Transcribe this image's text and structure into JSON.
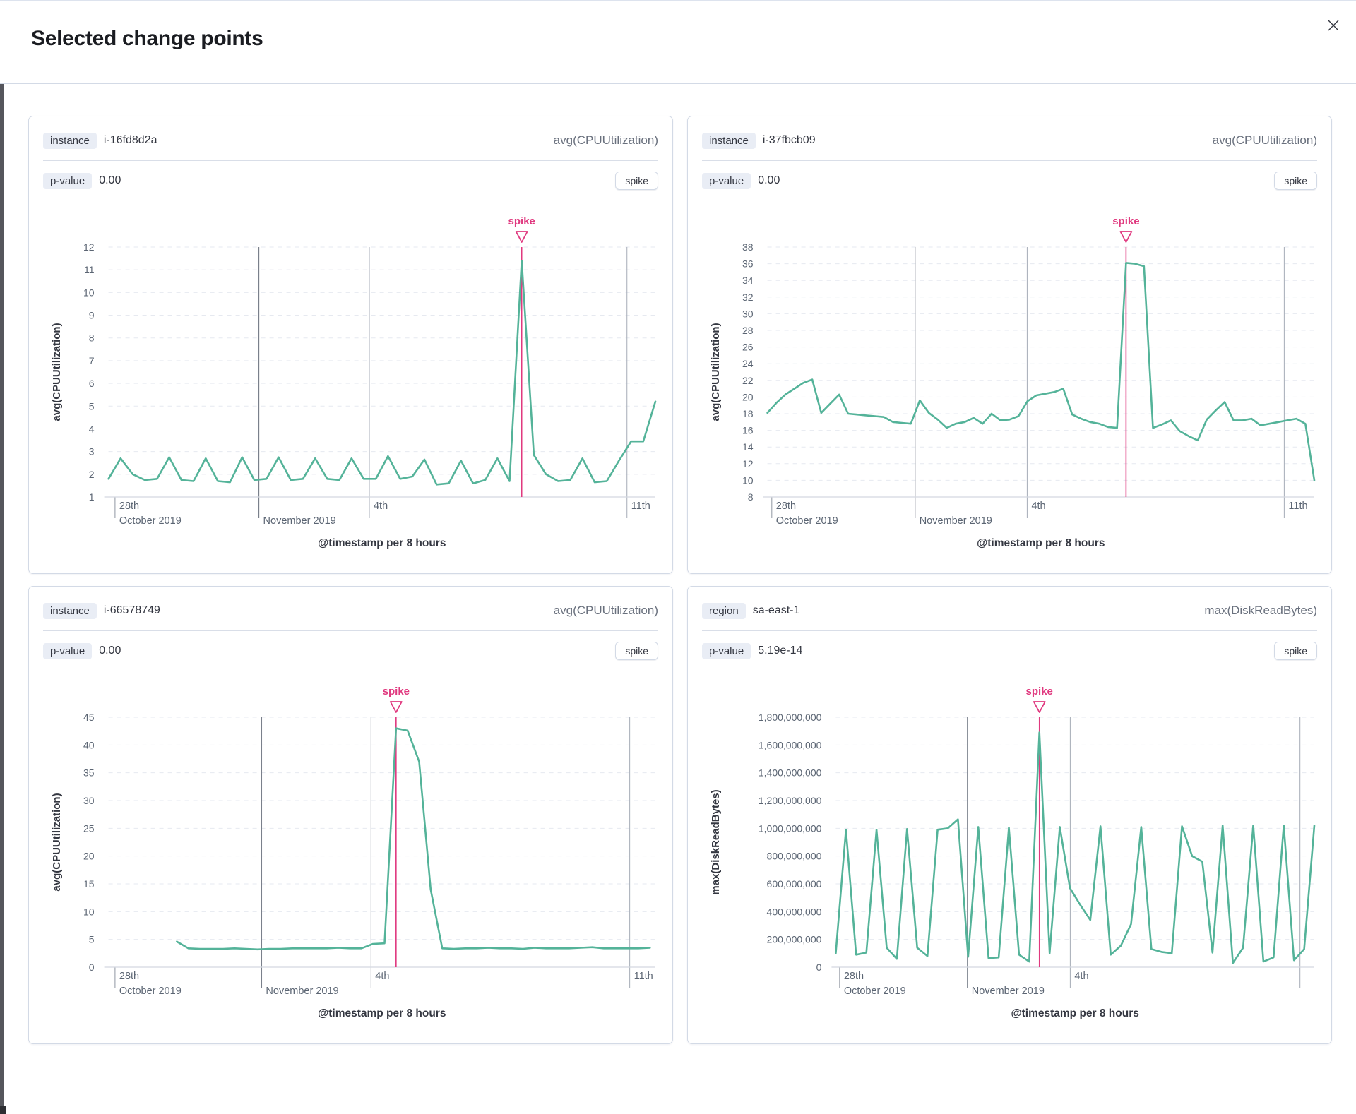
{
  "modal": {
    "title": "Selected change points"
  },
  "theme": {
    "line_color": "#54B399",
    "annotation_color": "#e0397f",
    "grid_dash_color": "#e6e9f0",
    "axis_line_color": "#d4d8e0",
    "strong_gridline_color": "#7a808b",
    "light_gridline_color": "#adb3bd",
    "tick_gridline_color": "#9aa0aa",
    "tick_label_color": "#5b6573",
    "axis_title_color": "#343741"
  },
  "panels": [
    {
      "key_label": "instance",
      "key_value": "i-16fd8d2a",
      "metric": "avg(CPUUtilization)",
      "p_label": "p-value",
      "p_value": "0.00",
      "change_type": "spike",
      "chart_data": {
        "type": "line",
        "xlabel": "@timestamp per 8 hours",
        "ylabel": "avg(CPUUtilization)",
        "ylim": [
          1,
          12
        ],
        "x_start": 0,
        "x_end": 1,
        "yticks": [
          {
            "v": 12,
            "t": "12"
          },
          {
            "v": 11,
            "t": "11"
          },
          {
            "v": 10,
            "t": "10"
          },
          {
            "v": 9,
            "t": "9"
          },
          {
            "v": 8,
            "t": "8"
          },
          {
            "v": 7,
            "t": "7"
          },
          {
            "v": 6,
            "t": "6"
          },
          {
            "v": 5,
            "t": "5"
          },
          {
            "v": 4,
            "t": "4"
          },
          {
            "v": 3,
            "t": "3"
          },
          {
            "v": 2,
            "t": "2"
          },
          {
            "v": 1,
            "t": "1"
          }
        ],
        "xticks": [
          {
            "frac": 0.012,
            "line1": "28th",
            "line2": "October 2019",
            "style": "tick"
          },
          {
            "frac": 0.275,
            "line1": "",
            "line2": "November 2019",
            "style": "strong"
          },
          {
            "frac": 0.477,
            "line1": "4th",
            "line2": "",
            "style": "light"
          },
          {
            "frac": 0.948,
            "line1": "11th",
            "line2": "",
            "style": "light"
          }
        ],
        "values": [
          1.8,
          2.7,
          2.0,
          1.75,
          1.8,
          2.75,
          1.75,
          1.7,
          2.7,
          1.7,
          1.65,
          2.75,
          1.75,
          1.8,
          2.75,
          1.75,
          1.8,
          2.7,
          1.8,
          1.75,
          2.7,
          1.8,
          1.8,
          2.8,
          1.8,
          1.9,
          2.65,
          1.55,
          1.6,
          2.6,
          1.6,
          1.75,
          2.7,
          1.7,
          11.4,
          2.85,
          2.0,
          1.7,
          1.75,
          2.7,
          1.65,
          1.7,
          2.6,
          3.45,
          3.45,
          5.2
        ],
        "annotation": {
          "label": "spike"
        }
      }
    },
    {
      "key_label": "instance",
      "key_value": "i-37fbcb09",
      "metric": "avg(CPUUtilization)",
      "p_label": "p-value",
      "p_value": "0.00",
      "change_type": "spike",
      "chart_data": {
        "type": "line",
        "xlabel": "@timestamp per 8 hours",
        "ylabel": "avg(CPUUtilization)",
        "ylim": [
          8,
          38
        ],
        "x_start": 0,
        "x_end": 1,
        "yticks": [
          {
            "v": 38,
            "t": "38"
          },
          {
            "v": 36,
            "t": "36"
          },
          {
            "v": 34,
            "t": "34"
          },
          {
            "v": 32,
            "t": "32"
          },
          {
            "v": 30,
            "t": "30"
          },
          {
            "v": 28,
            "t": "28"
          },
          {
            "v": 26,
            "t": "26"
          },
          {
            "v": 24,
            "t": "24"
          },
          {
            "v": 22,
            "t": "22"
          },
          {
            "v": 20,
            "t": "20"
          },
          {
            "v": 18,
            "t": "18"
          },
          {
            "v": 16,
            "t": "16"
          },
          {
            "v": 14,
            "t": "14"
          },
          {
            "v": 12,
            "t": "12"
          },
          {
            "v": 10,
            "t": "10"
          },
          {
            "v": 8,
            "t": "8"
          }
        ],
        "xticks": [
          {
            "frac": 0.008,
            "line1": "28th",
            "line2": "October 2019",
            "style": "tick"
          },
          {
            "frac": 0.27,
            "line1": "",
            "line2": "November 2019",
            "style": "strong"
          },
          {
            "frac": 0.475,
            "line1": "4th",
            "line2": "",
            "style": "light"
          },
          {
            "frac": 0.945,
            "line1": "11th",
            "line2": "",
            "style": "light"
          }
        ],
        "values": [
          18.1,
          19.3,
          20.3,
          21.0,
          21.7,
          22.1,
          18.1,
          19.2,
          20.3,
          18.0,
          17.9,
          17.8,
          17.7,
          17.6,
          17.0,
          16.9,
          16.8,
          19.6,
          18.1,
          17.3,
          16.3,
          16.8,
          17.0,
          17.5,
          16.8,
          18.0,
          17.2,
          17.3,
          17.7,
          19.5,
          20.2,
          20.4,
          20.6,
          21.0,
          17.9,
          17.4,
          17.0,
          16.8,
          16.4,
          16.3,
          36.1,
          36.0,
          35.7,
          16.3,
          16.7,
          17.2,
          15.9,
          15.3,
          14.8,
          17.3,
          18.4,
          19.4,
          17.2,
          17.2,
          17.4,
          16.6,
          16.8,
          17.0,
          17.2,
          17.4,
          16.8,
          10.0
        ],
        "annotation": {
          "label": "spike"
        }
      }
    },
    {
      "key_label": "instance",
      "key_value": "i-66578749",
      "metric": "avg(CPUUtilization)",
      "p_label": "p-value",
      "p_value": "0.00",
      "change_type": "spike",
      "chart_data": {
        "type": "line",
        "xlabel": "@timestamp per 8 hours",
        "ylabel": "avg(CPUUtilization)",
        "ylim": [
          0,
          45
        ],
        "x_start": 0.125,
        "x_end": 0.99,
        "yticks": [
          {
            "v": 45,
            "t": "45"
          },
          {
            "v": 40,
            "t": "40"
          },
          {
            "v": 35,
            "t": "35"
          },
          {
            "v": 30,
            "t": "30"
          },
          {
            "v": 25,
            "t": "25"
          },
          {
            "v": 20,
            "t": "20"
          },
          {
            "v": 15,
            "t": "15"
          },
          {
            "v": 10,
            "t": "10"
          },
          {
            "v": 5,
            "t": "5"
          },
          {
            "v": 0,
            "t": "0"
          }
        ],
        "xticks": [
          {
            "frac": 0.012,
            "line1": "28th",
            "line2": "October 2019",
            "style": "tick"
          },
          {
            "frac": 0.28,
            "line1": "",
            "line2": "November 2019",
            "style": "strong"
          },
          {
            "frac": 0.48,
            "line1": "4th",
            "line2": "",
            "style": "light"
          },
          {
            "frac": 0.953,
            "line1": "11th",
            "line2": "",
            "style": "light"
          }
        ],
        "values": [
          4.6,
          3.4,
          3.3,
          3.3,
          3.3,
          3.4,
          3.3,
          3.2,
          3.3,
          3.3,
          3.4,
          3.4,
          3.4,
          3.4,
          3.5,
          3.4,
          3.4,
          4.2,
          4.3,
          43.0,
          42.6,
          37.0,
          14.0,
          3.4,
          3.3,
          3.4,
          3.4,
          3.5,
          3.4,
          3.4,
          3.3,
          3.5,
          3.4,
          3.4,
          3.4,
          3.5,
          3.6,
          3.4,
          3.4,
          3.4,
          3.4,
          3.5
        ],
        "annotation": {
          "label": "spike"
        }
      }
    },
    {
      "key_label": "region",
      "key_value": "sa-east-1",
      "metric": "max(DiskReadBytes)",
      "p_label": "p-value",
      "p_value": "5.19e-14",
      "change_type": "spike",
      "chart_data": {
        "type": "line",
        "xlabel": "@timestamp per 8 hours",
        "ylabel": "max(DiskReadBytes)",
        "ylim": [
          0,
          1800000000
        ],
        "x_start": 0,
        "x_end": 1,
        "yticks": [
          {
            "v": 1800000000,
            "t": "1,800,000,000"
          },
          {
            "v": 1600000000,
            "t": "1,600,000,000"
          },
          {
            "v": 1400000000,
            "t": "1,400,000,000"
          },
          {
            "v": 1200000000,
            "t": "1,200,000,000"
          },
          {
            "v": 1000000000,
            "t": "1,000,000,000"
          },
          {
            "v": 800000000,
            "t": "800,000,000"
          },
          {
            "v": 600000000,
            "t": "600,000,000"
          },
          {
            "v": 400000000,
            "t": "400,000,000"
          },
          {
            "v": 200000000,
            "t": "200,000,000"
          },
          {
            "v": 0,
            "t": "0"
          }
        ],
        "xticks": [
          {
            "frac": 0.008,
            "line1": "28th",
            "line2": "October 2019",
            "style": "tick"
          },
          {
            "frac": 0.275,
            "line1": "",
            "line2": "November 2019",
            "style": "strong"
          },
          {
            "frac": 0.49,
            "line1": "4th",
            "line2": "",
            "style": "light"
          },
          {
            "frac": 0.97,
            "line1": "",
            "line2": "",
            "style": "light"
          }
        ],
        "values": [
          100000000,
          990000000,
          90000000,
          105000000,
          990000000,
          140000000,
          60000000,
          995000000,
          140000000,
          80000000,
          990000000,
          1000000000,
          1065000000,
          75000000,
          1010000000,
          65000000,
          70000000,
          1005000000,
          90000000,
          40000000,
          1690000000,
          100000000,
          1010000000,
          570000000,
          450000000,
          340000000,
          1015000000,
          90000000,
          155000000,
          310000000,
          1010000000,
          130000000,
          110000000,
          100000000,
          1015000000,
          800000000,
          760000000,
          105000000,
          1020000000,
          30000000,
          140000000,
          1020000000,
          40000000,
          70000000,
          1020000000,
          50000000,
          130000000,
          1020000000
        ],
        "annotation": {
          "label": "spike"
        }
      }
    }
  ]
}
